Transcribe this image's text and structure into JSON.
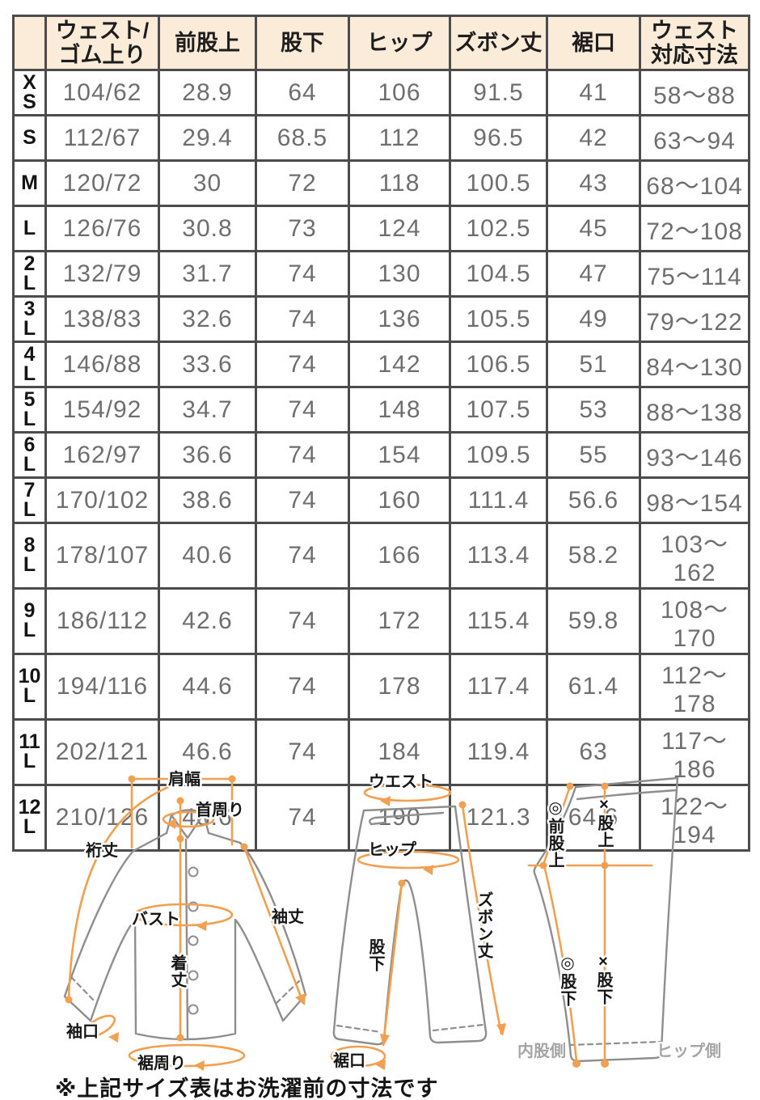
{
  "table": {
    "columns": [
      [
        ""
      ],
      [
        "ウェスト/",
        "ゴム上り"
      ],
      [
        "前股上"
      ],
      [
        "股下"
      ],
      [
        "ヒップ"
      ],
      [
        "ズボン丈"
      ],
      [
        "裾口"
      ],
      [
        "ウェスト",
        "対応寸法"
      ]
    ],
    "rows": [
      {
        "size_lines": [
          "X",
          "S"
        ],
        "values": [
          "104/62",
          "28.9",
          "64",
          "106",
          "91.5",
          "41",
          "58〜88"
        ]
      },
      {
        "size_lines": [
          "S"
        ],
        "values": [
          "112/67",
          "29.4",
          "68.5",
          "112",
          "96.5",
          "42",
          "63〜94"
        ]
      },
      {
        "size_lines": [
          "M"
        ],
        "values": [
          "120/72",
          "30",
          "72",
          "118",
          "100.5",
          "43",
          "68〜104"
        ]
      },
      {
        "size_lines": [
          "L"
        ],
        "values": [
          "126/76",
          "30.8",
          "73",
          "124",
          "102.5",
          "45",
          "72〜108"
        ]
      },
      {
        "size_lines": [
          "2",
          "L"
        ],
        "values": [
          "132/79",
          "31.7",
          "74",
          "130",
          "104.5",
          "47",
          "75〜114"
        ]
      },
      {
        "size_lines": [
          "3",
          "L"
        ],
        "values": [
          "138/83",
          "32.6",
          "74",
          "136",
          "105.5",
          "49",
          "79〜122"
        ]
      },
      {
        "size_lines": [
          "4",
          "L"
        ],
        "values": [
          "146/88",
          "33.6",
          "74",
          "142",
          "106.5",
          "51",
          "84〜130"
        ]
      },
      {
        "size_lines": [
          "5",
          "L"
        ],
        "values": [
          "154/92",
          "34.7",
          "74",
          "148",
          "107.5",
          "53",
          "88〜138"
        ]
      },
      {
        "size_lines": [
          "6",
          "L"
        ],
        "values": [
          "162/97",
          "36.6",
          "74",
          "154",
          "109.5",
          "55",
          "93〜146"
        ]
      },
      {
        "size_lines": [
          "7",
          "L"
        ],
        "values": [
          "170/102",
          "38.6",
          "74",
          "160",
          "111.4",
          "56.6",
          "98〜154"
        ]
      },
      {
        "size_lines": [
          "8",
          "L"
        ],
        "values": [
          "178/107",
          "40.6",
          "74",
          "166",
          "113.4",
          "58.2",
          "103〜162"
        ]
      },
      {
        "size_lines": [
          "9",
          "L"
        ],
        "values": [
          "186/112",
          "42.6",
          "74",
          "172",
          "115.4",
          "59.8",
          "108〜170"
        ]
      },
      {
        "size_lines": [
          "10",
          "L"
        ],
        "values": [
          "194/116",
          "44.6",
          "74",
          "178",
          "117.4",
          "61.4",
          "112〜178"
        ]
      },
      {
        "size_lines": [
          "11",
          "L"
        ],
        "values": [
          "202/121",
          "46.6",
          "74",
          "184",
          "119.4",
          "63",
          "117〜186"
        ]
      },
      {
        "size_lines": [
          "12",
          "L"
        ],
        "values": [
          "210/126",
          "48.6",
          "74",
          "190",
          "121.3",
          "64.6",
          "122〜194"
        ]
      }
    ]
  },
  "diagrams": {
    "shirt": {
      "shoulder_width": "肩幅",
      "neck": "首周り",
      "yuki": "裄丈",
      "bust": "バスト",
      "sleeve_length": "袖丈",
      "body_length": "着丈",
      "cuff": "袖口",
      "hem_round": "裾周り"
    },
    "pants_front": {
      "waist": "ウエスト",
      "hip": "ヒップ",
      "pants_length": "ズボン丈",
      "inseam": "股下",
      "hem": "裾口"
    },
    "pants_side": {
      "front_rise": "◎前股上",
      "rise": "×股上",
      "inseam_a": "◎股下",
      "inseam_b": "×股下",
      "inner_side": "内股側",
      "hip_side": "ヒップ側"
    }
  },
  "footnote": "※上記サイズ表はお洗濯前の寸法です",
  "colors": {
    "header_bg": "#faecd9",
    "border": "#4c4c4c",
    "value_text": "#6e6e6e",
    "accent_orange": "#f0a050",
    "outline_gray": "#8e8e8e",
    "side_label_gray": "#a5a5a5"
  }
}
